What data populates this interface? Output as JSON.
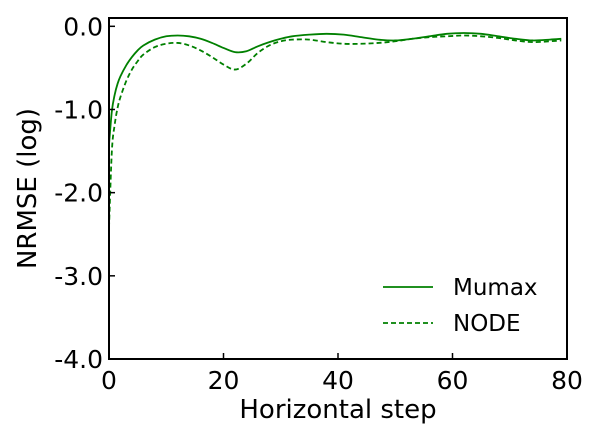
{
  "chart_data": {
    "type": "line",
    "title": "",
    "xlabel": "Horizontal step",
    "ylabel": "NRMSE (log)",
    "xlim": [
      0,
      80
    ],
    "ylim": [
      -4.0,
      0.1
    ],
    "x_ticks": [
      0,
      20,
      40,
      60,
      80
    ],
    "x_tick_labels": [
      "0",
      "20",
      "40",
      "60",
      "80"
    ],
    "y_ticks": [
      -4.0,
      -3.0,
      -2.0,
      -1.0,
      0.0
    ],
    "y_tick_labels": [
      "-4.0",
      "-3.0",
      "-2.0",
      "-1.0",
      "0.0"
    ],
    "grid": false,
    "legend_position": "bottom-right",
    "series": [
      {
        "name": "Mumax",
        "color": "#008000",
        "dash": "solid",
        "x": [
          0,
          0.5,
          1,
          1.5,
          2,
          3,
          4,
          5,
          6,
          8,
          10,
          12,
          14,
          16,
          18,
          20,
          22,
          24,
          26,
          28,
          30,
          32,
          35,
          38,
          41,
          44,
          47,
          50,
          53,
          56,
          59,
          62,
          65,
          68,
          71,
          74,
          77,
          79
        ],
        "y": [
          -1.42,
          -1.02,
          -0.82,
          -0.69,
          -0.6,
          -0.47,
          -0.37,
          -0.29,
          -0.23,
          -0.16,
          -0.12,
          -0.11,
          -0.12,
          -0.15,
          -0.2,
          -0.26,
          -0.31,
          -0.3,
          -0.24,
          -0.19,
          -0.15,
          -0.12,
          -0.1,
          -0.09,
          -0.1,
          -0.13,
          -0.16,
          -0.17,
          -0.15,
          -0.12,
          -0.09,
          -0.08,
          -0.09,
          -0.12,
          -0.15,
          -0.17,
          -0.16,
          -0.15
        ]
      },
      {
        "name": "NODE",
        "color": "#008000",
        "dash": "dashed",
        "x": [
          0,
          0.5,
          1,
          1.5,
          2,
          3,
          4,
          5,
          6,
          8,
          10,
          12,
          14,
          16,
          18,
          20,
          22,
          24,
          26,
          28,
          30,
          32,
          35,
          38,
          41,
          44,
          47,
          50,
          53,
          56,
          59,
          62,
          65,
          68,
          71,
          74,
          77,
          79
        ],
        "y": [
          -2.42,
          -1.5,
          -1.18,
          -0.98,
          -0.85,
          -0.66,
          -0.52,
          -0.42,
          -0.34,
          -0.25,
          -0.21,
          -0.2,
          -0.23,
          -0.29,
          -0.37,
          -0.46,
          -0.52,
          -0.45,
          -0.32,
          -0.23,
          -0.18,
          -0.16,
          -0.16,
          -0.19,
          -0.21,
          -0.21,
          -0.2,
          -0.18,
          -0.15,
          -0.13,
          -0.12,
          -0.11,
          -0.12,
          -0.14,
          -0.17,
          -0.19,
          -0.18,
          -0.17
        ]
      }
    ]
  }
}
